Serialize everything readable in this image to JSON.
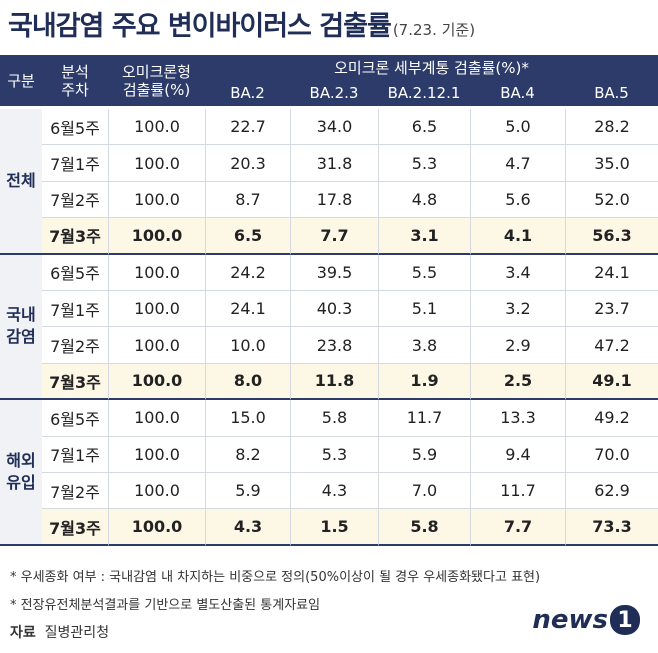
{
  "header": {
    "title": "국내감염 주요 변이바이러스 검출률",
    "subtitle": "(7.23. 기준)"
  },
  "table": {
    "head": {
      "group": "구분",
      "week": [
        "분석",
        "주차"
      ],
      "omicron": [
        "오미크론형",
        "검출률(%)"
      ],
      "subtype_title": "오미크론 세부계통 검출률(%)*",
      "subtypes": [
        "BA.2",
        "BA.2.3",
        "BA.2.12.1",
        "BA.4",
        "BA.5"
      ]
    },
    "groups": [
      {
        "label": [
          "전체"
        ],
        "rows": [
          [
            "6월5주",
            "100.0",
            "22.7",
            "34.0",
            "6.5",
            "5.0",
            "28.2"
          ],
          [
            "7월1주",
            "100.0",
            "20.3",
            "31.8",
            "5.3",
            "4.7",
            "35.0"
          ],
          [
            "7월2주",
            "100.0",
            "8.7",
            "17.8",
            "4.8",
            "5.6",
            "52.0"
          ],
          [
            "7월3주",
            "100.0",
            "6.5",
            "7.7",
            "3.1",
            "4.1",
            "56.3"
          ]
        ]
      },
      {
        "label": [
          "국내",
          "감염"
        ],
        "rows": [
          [
            "6월5주",
            "100.0",
            "24.2",
            "39.5",
            "5.5",
            "3.4",
            "24.1"
          ],
          [
            "7월1주",
            "100.0",
            "24.1",
            "40.3",
            "5.1",
            "3.2",
            "23.7"
          ],
          [
            "7월2주",
            "100.0",
            "10.0",
            "23.8",
            "3.8",
            "2.9",
            "47.2"
          ],
          [
            "7월3주",
            "100.0",
            "8.0",
            "11.8",
            "1.9",
            "2.5",
            "49.1"
          ]
        ]
      },
      {
        "label": [
          "해외",
          "유입"
        ],
        "rows": [
          [
            "6월5주",
            "100.0",
            "15.0",
            "5.8",
            "11.7",
            "13.3",
            "49.2"
          ],
          [
            "7월1주",
            "100.0",
            "8.2",
            "5.3",
            "5.9",
            "9.4",
            "70.0"
          ],
          [
            "7월2주",
            "100.0",
            "5.9",
            "4.3",
            "7.0",
            "11.7",
            "62.9"
          ],
          [
            "7월3주",
            "100.0",
            "4.3",
            "1.5",
            "5.8",
            "7.7",
            "73.3"
          ]
        ]
      }
    ]
  },
  "notes": [
    "* 우세종화 여부 : 국내감염 내 차지하는 비중으로 정의(50%이상이 될 경우 우세종화됐다고 표현)",
    "* 전장유전체분석결과를 기반으로 별도산출된 통계자료임"
  ],
  "source": {
    "label": "자료",
    "text": "질병관리청"
  },
  "logo": [
    "news",
    "1"
  ]
}
